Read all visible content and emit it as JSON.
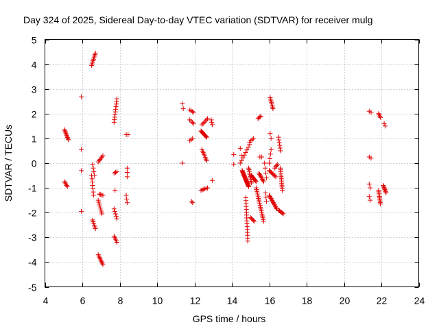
{
  "chart_data": {
    "type": "scatter",
    "title": "Day 324 of 2025, Sidereal Day-to-day VTEC variation (SDTVAR) for receiver mulg",
    "xlabel": "GPS time / hours",
    "ylabel": "SDTVAR / TECUs",
    "xlim": [
      4,
      24
    ],
    "ylim": [
      -5,
      5
    ],
    "xticks": [
      4,
      6,
      8,
      10,
      12,
      14,
      16,
      18,
      20,
      22,
      24
    ],
    "yticks": [
      -5,
      -4,
      -3,
      -2,
      -1,
      0,
      1,
      2,
      3,
      4,
      5
    ],
    "grid": true,
    "marker": "+",
    "color": "#e00000",
    "segments": [
      [
        5.05,
        1.35,
        5.25,
        0.95,
        10
      ],
      [
        5.05,
        -0.75,
        5.2,
        -0.95,
        5
      ],
      [
        5.95,
        2.68,
        5.95,
        2.68,
        1
      ],
      [
        5.95,
        0.55,
        5.95,
        0.55,
        1
      ],
      [
        5.95,
        -0.3,
        5.95,
        -0.3,
        1
      ],
      [
        5.95,
        -1.95,
        5.95,
        -1.95,
        1
      ],
      [
        6.5,
        3.95,
        6.7,
        4.45,
        9
      ],
      [
        6.5,
        -0.5,
        6.6,
        -1.3,
        7
      ],
      [
        6.55,
        -0.05,
        6.65,
        -0.5,
        4
      ],
      [
        6.55,
        -2.3,
        6.7,
        -2.65,
        6
      ],
      [
        6.85,
        0.05,
        7.1,
        0.3,
        6
      ],
      [
        6.9,
        -1.25,
        7.1,
        -1.3,
        4
      ],
      [
        6.85,
        -1.5,
        7.05,
        -2.05,
        8
      ],
      [
        6.85,
        -3.7,
        7.1,
        -4.1,
        8
      ],
      [
        7.7,
        1.65,
        7.85,
        2.6,
        10
      ],
      [
        7.7,
        -0.4,
        7.85,
        -0.35,
        3
      ],
      [
        7.75,
        -1.1,
        7.75,
        -1.1,
        1
      ],
      [
        7.7,
        -1.85,
        7.85,
        -2.25,
        5
      ],
      [
        7.7,
        -2.95,
        7.85,
        -3.2,
        5
      ],
      [
        8.35,
        1.15,
        8.45,
        1.15,
        2
      ],
      [
        8.4,
        -0.2,
        8.4,
        -0.55,
        3
      ],
      [
        8.35,
        -1.3,
        8.4,
        -1.6,
        3
      ],
      [
        11.35,
        2.4,
        11.4,
        2.2,
        2
      ],
      [
        11.35,
        0.0,
        11.35,
        0.0,
        1
      ],
      [
        11.75,
        2.15,
        11.95,
        2.05,
        4
      ],
      [
        11.75,
        1.75,
        11.95,
        1.6,
        4
      ],
      [
        11.75,
        0.9,
        11.9,
        1.0,
        3
      ],
      [
        11.85,
        -1.55,
        11.9,
        -1.6,
        2
      ],
      [
        12.4,
        1.55,
        12.7,
        1.8,
        6
      ],
      [
        12.35,
        1.3,
        12.65,
        1.05,
        12
      ],
      [
        12.4,
        0.55,
        12.65,
        0.1,
        8
      ],
      [
        12.35,
        -1.1,
        12.7,
        -1.0,
        6
      ],
      [
        12.9,
        1.75,
        12.95,
        1.55,
        3
      ],
      [
        12.95,
        -0.7,
        12.95,
        -0.7,
        1
      ],
      [
        14.1,
        0.35,
        14.1,
        -0.05,
        2
      ],
      [
        14.45,
        0.6,
        14.5,
        0.3,
        2
      ],
      [
        14.45,
        0.0,
        14.95,
        0.75,
        8
      ],
      [
        14.55,
        -0.3,
        14.9,
        -0.95,
        25
      ],
      [
        14.75,
        -1.4,
        14.85,
        -3.15,
        16
      ],
      [
        14.9,
        -0.2,
        15.05,
        -0.8,
        10
      ],
      [
        14.95,
        0.85,
        15.15,
        1.0,
        4
      ],
      [
        15.0,
        -2.2,
        15.2,
        -2.35,
        5
      ],
      [
        15.05,
        -0.5,
        15.3,
        -0.75,
        8
      ],
      [
        15.3,
        -1.0,
        15.7,
        -2.35,
        20
      ],
      [
        15.4,
        1.8,
        15.55,
        1.9,
        4
      ],
      [
        15.45,
        -0.4,
        15.7,
        -0.75,
        8
      ],
      [
        15.5,
        0.25,
        15.6,
        0.25,
        2
      ],
      [
        15.75,
        0.0,
        15.85,
        -0.6,
        4
      ],
      [
        15.8,
        -1.2,
        15.85,
        -1.55,
        3
      ],
      [
        16.05,
        2.65,
        16.2,
        2.2,
        8
      ],
      [
        16.05,
        1.2,
        16.1,
        1.0,
        2
      ],
      [
        16.0,
        0.0,
        16.1,
        0.55,
        4
      ],
      [
        16.0,
        -0.3,
        16.35,
        -0.55,
        8
      ],
      [
        16.0,
        -1.3,
        16.4,
        -1.85,
        14
      ],
      [
        16.3,
        -0.2,
        16.45,
        -0.05,
        4
      ],
      [
        16.5,
        1.05,
        16.6,
        0.5,
        6
      ],
      [
        16.6,
        -0.2,
        16.7,
        -1.1,
        14
      ],
      [
        16.5,
        -1.9,
        16.75,
        -2.05,
        6
      ],
      [
        21.35,
        2.1,
        21.45,
        2.05,
        2
      ],
      [
        21.35,
        0.25,
        21.45,
        0.2,
        2
      ],
      [
        21.35,
        -0.85,
        21.4,
        -1.0,
        2
      ],
      [
        21.35,
        -1.35,
        21.4,
        -1.5,
        2
      ],
      [
        21.85,
        2.0,
        21.95,
        1.85,
        4
      ],
      [
        21.85,
        -1.1,
        21.95,
        -1.65,
        10
      ],
      [
        22.15,
        1.6,
        22.2,
        1.5,
        2
      ],
      [
        22.1,
        -0.9,
        22.25,
        -1.2,
        8
      ]
    ]
  }
}
